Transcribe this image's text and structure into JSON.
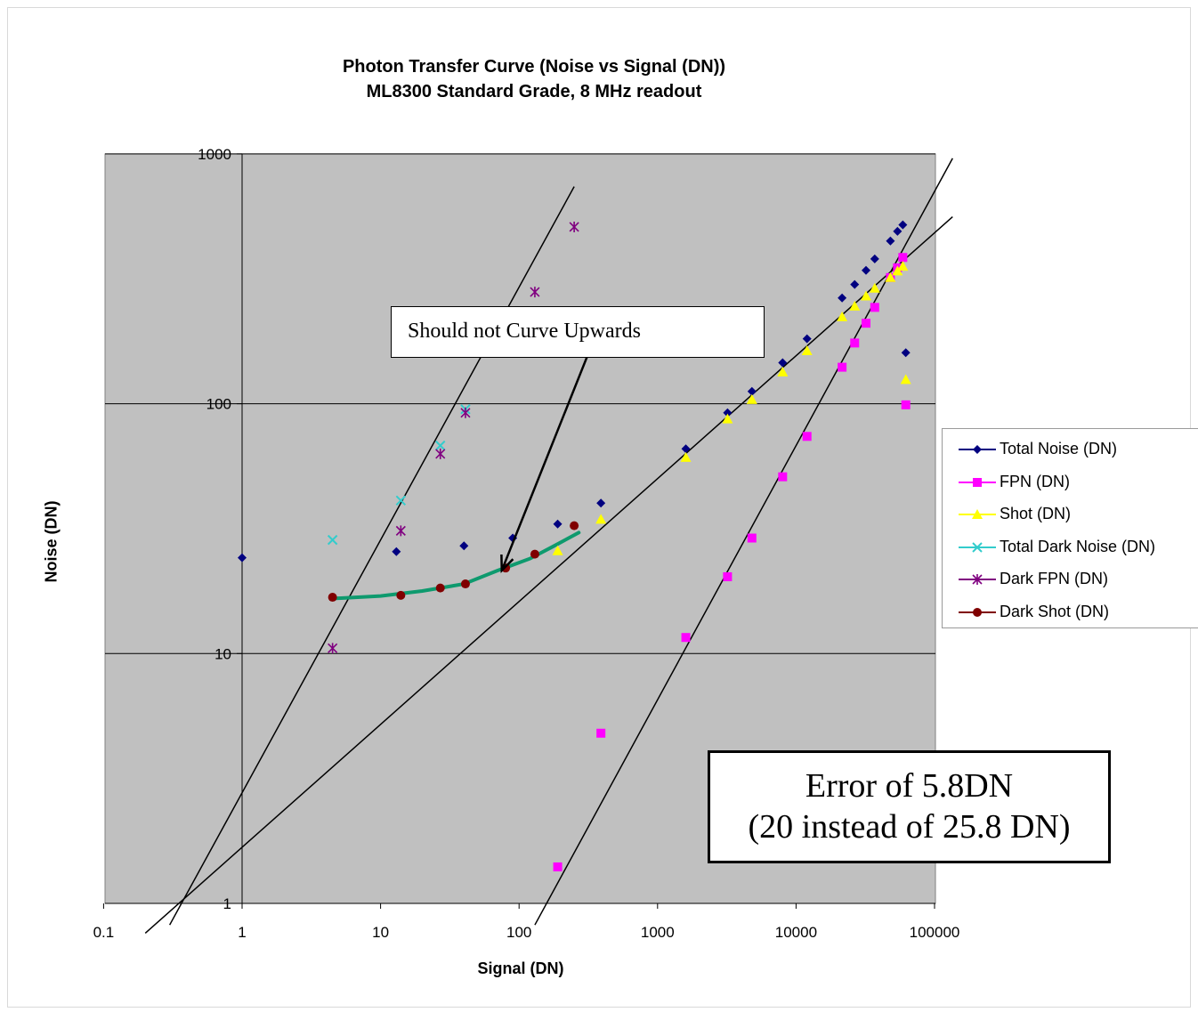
{
  "title": {
    "line1": "Photon Transfer Curve (Noise vs Signal (DN))",
    "line2": "ML8300 Standard Grade, 8 MHz readout"
  },
  "annotations": {
    "callout": "Should not Curve Upwards",
    "error_line1": "Error of 5.8DN",
    "error_line2": "(20 instead of 25.8 DN)"
  },
  "colors": {
    "plot_background": "#c0c0c0",
    "total_noise": "#000080",
    "fpn": "#ff00ff",
    "shot": "#ffff00",
    "total_dark_noise": "#33cccc",
    "dark_fpn": "#800080",
    "dark_shot": "#800000",
    "fit_curve": "#0e9a6e"
  },
  "chart_data": {
    "type": "scatter",
    "xscale": "log",
    "yscale": "log",
    "xlabel": "Signal (DN)",
    "ylabel": "Noise (DN)",
    "xlim": [
      0.1,
      100000
    ],
    "ylim": [
      1,
      1000
    ],
    "x_ticks": [
      "0.1",
      "1",
      "10",
      "100",
      "1000",
      "10000",
      "100000"
    ],
    "y_ticks": [
      "1",
      "10",
      "100",
      "1000"
    ],
    "grid": "horizontal major",
    "legend_position": "right",
    "series": [
      {
        "name": "Total Noise (DN)",
        "marker": "diamond",
        "points": [
          [
            1,
            24.2
          ],
          [
            13,
            25.6
          ],
          [
            40,
            27
          ],
          [
            90,
            29
          ],
          [
            190,
            33
          ],
          [
            390,
            40
          ],
          [
            1600,
            66
          ],
          [
            3200,
            92
          ],
          [
            4800,
            112
          ],
          [
            8000,
            146
          ],
          [
            12000,
            182
          ],
          [
            21500,
            265
          ],
          [
            26500,
            300
          ],
          [
            32000,
            342
          ],
          [
            37000,
            380
          ],
          [
            48000,
            448
          ],
          [
            54000,
            490
          ],
          [
            59000,
            520
          ],
          [
            62000,
            160
          ]
        ]
      },
      {
        "name": "FPN (DN)",
        "marker": "square",
        "points": [
          [
            190,
            1.4
          ],
          [
            390,
            4.8
          ],
          [
            1600,
            11.6
          ],
          [
            3200,
            20.3
          ],
          [
            4800,
            29
          ],
          [
            8000,
            51
          ],
          [
            12000,
            74
          ],
          [
            21500,
            140
          ],
          [
            26500,
            175
          ],
          [
            32000,
            210
          ],
          [
            37000,
            243
          ],
          [
            48000,
            320
          ],
          [
            54000,
            350
          ],
          [
            59000,
            385
          ],
          [
            62000,
            99
          ]
        ]
      },
      {
        "name": "Shot (DN)",
        "marker": "triangle",
        "points": [
          [
            190,
            25.8
          ],
          [
            390,
            34.5
          ],
          [
            1600,
            61
          ],
          [
            3200,
            87
          ],
          [
            4800,
            104
          ],
          [
            8000,
            134
          ],
          [
            12000,
            163
          ],
          [
            21500,
            223
          ],
          [
            26500,
            246
          ],
          [
            32000,
            270
          ],
          [
            37000,
            290
          ],
          [
            48000,
            320
          ],
          [
            54000,
            340
          ],
          [
            59000,
            355
          ],
          [
            62000,
            125
          ]
        ]
      },
      {
        "name": "Total Dark Noise (DN)",
        "marker": "x",
        "points": [
          [
            4.5,
            28.5
          ],
          [
            14,
            41
          ],
          [
            27,
            68
          ],
          [
            41,
            95
          ]
        ]
      },
      {
        "name": "Dark FPN (DN)",
        "marker": "star",
        "points": [
          [
            4.5,
            10.5
          ],
          [
            14,
            31
          ],
          [
            27,
            63
          ],
          [
            41,
            92
          ],
          [
            130,
            280
          ],
          [
            250,
            510
          ]
        ]
      },
      {
        "name": "Dark Shot (DN)",
        "marker": "circle",
        "points": [
          [
            4.5,
            16.8
          ],
          [
            14,
            17.1
          ],
          [
            27,
            18.3
          ],
          [
            41,
            19
          ],
          [
            80,
            22
          ],
          [
            130,
            25
          ],
          [
            250,
            32.5
          ]
        ]
      }
    ],
    "reference_lines": [
      {
        "slope": 1,
        "points": [
          [
            0.3,
            0.82
          ],
          [
            250,
            740
          ]
        ]
      },
      {
        "slope": 0.5,
        "points": [
          [
            0.2,
            0.76
          ],
          [
            135000,
            560
          ]
        ]
      },
      {
        "slope": 1,
        "points": [
          [
            130,
            0.82
          ],
          [
            135000,
            960
          ]
        ]
      }
    ],
    "fit_curve": [
      [
        4.5,
        16.6
      ],
      [
        10,
        17
      ],
      [
        20,
        17.8
      ],
      [
        40,
        19
      ],
      [
        70,
        21.5
      ],
      [
        120,
        24
      ],
      [
        180,
        27
      ],
      [
        270,
        30.5
      ]
    ],
    "callout_arrow": {
      "from": [
        400,
        220
      ],
      "to": [
        75,
        21.5
      ]
    }
  }
}
